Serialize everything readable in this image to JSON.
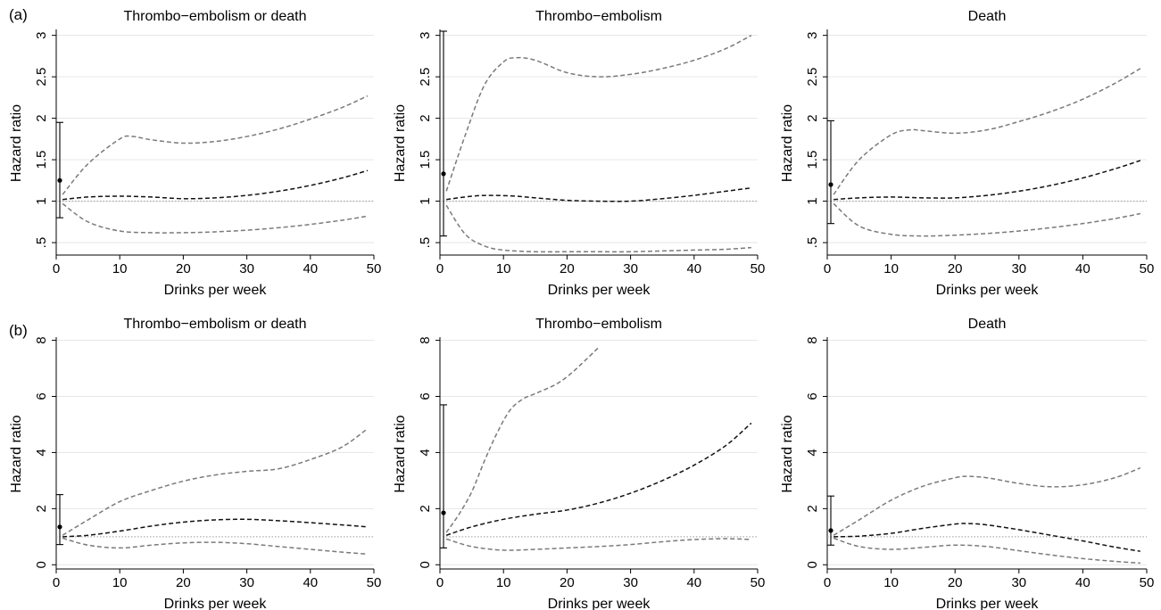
{
  "panel_labels": [
    "(a)",
    "(b)"
  ],
  "chart_data": [
    {
      "type": "line",
      "row": 0,
      "col": 0,
      "title": "Thrombo−embolism or death",
      "xlabel": "Drinks per week",
      "ylabel": "Hazard ratio",
      "xlim": [
        0,
        50
      ],
      "ylim": [
        0.35,
        3.05
      ],
      "xticks": [
        0,
        10,
        20,
        30,
        40,
        50
      ],
      "yticks": [
        0.5,
        1,
        1.5,
        2,
        2.5,
        3
      ],
      "ytick_labels": [
        ".5",
        "1",
        "1.5",
        "2",
        "2.5",
        "3"
      ],
      "grid": true,
      "reference_line": 1,
      "point_estimate": {
        "x": 0,
        "y": 1.25,
        "lower": 0.8,
        "upper": 1.95
      },
      "series": [
        {
          "role": "estimate",
          "x": [
            1,
            5,
            10,
            15,
            20,
            25,
            30,
            35,
            40,
            45,
            49
          ],
          "y": [
            1.02,
            1.05,
            1.06,
            1.05,
            1.03,
            1.04,
            1.07,
            1.12,
            1.19,
            1.28,
            1.37
          ]
        },
        {
          "role": "upper",
          "x": [
            1,
            5,
            10,
            12,
            15,
            20,
            25,
            30,
            35,
            40,
            45,
            49
          ],
          "y": [
            1.08,
            1.45,
            1.75,
            1.78,
            1.74,
            1.7,
            1.72,
            1.78,
            1.87,
            1.99,
            2.13,
            2.27
          ]
        },
        {
          "role": "lower",
          "x": [
            1,
            5,
            10,
            15,
            20,
            25,
            30,
            35,
            40,
            45,
            49
          ],
          "y": [
            0.97,
            0.75,
            0.64,
            0.62,
            0.62,
            0.63,
            0.65,
            0.68,
            0.72,
            0.77,
            0.82
          ]
        }
      ]
    },
    {
      "type": "line",
      "row": 0,
      "col": 1,
      "title": "Thrombo−embolism",
      "xlabel": "Drinks per week",
      "ylabel": "Hazard ratio",
      "xlim": [
        0,
        50
      ],
      "ylim": [
        0.35,
        3.05
      ],
      "xticks": [
        0,
        10,
        20,
        30,
        40,
        50
      ],
      "yticks": [
        0.5,
        1,
        1.5,
        2,
        2.5,
        3
      ],
      "ytick_labels": [
        ".5",
        "1",
        "1.5",
        "2",
        "2.5",
        "3"
      ],
      "grid": true,
      "reference_line": 1,
      "point_estimate": {
        "x": 0,
        "y": 1.33,
        "lower": 0.58,
        "upper": 3.05
      },
      "series": [
        {
          "role": "estimate",
          "x": [
            1,
            5,
            8,
            12,
            15,
            20,
            25,
            30,
            35,
            40,
            45,
            49
          ],
          "y": [
            1.02,
            1.06,
            1.07,
            1.06,
            1.04,
            1.01,
            1.0,
            1.0,
            1.03,
            1.07,
            1.12,
            1.16
          ]
        },
        {
          "role": "upper",
          "x": [
            1,
            4,
            7,
            10,
            12,
            15,
            20,
            25,
            30,
            35,
            40,
            45,
            49
          ],
          "y": [
            1.12,
            1.8,
            2.4,
            2.68,
            2.73,
            2.7,
            2.55,
            2.5,
            2.53,
            2.6,
            2.7,
            2.84,
            3.0
          ]
        },
        {
          "role": "lower",
          "x": [
            1,
            4,
            7,
            10,
            15,
            20,
            25,
            30,
            35,
            40,
            45,
            49
          ],
          "y": [
            0.95,
            0.6,
            0.46,
            0.41,
            0.39,
            0.39,
            0.39,
            0.39,
            0.4,
            0.41,
            0.42,
            0.44
          ]
        }
      ]
    },
    {
      "type": "line",
      "row": 0,
      "col": 2,
      "title": "Death",
      "xlabel": "Drinks per week",
      "ylabel": "Hazard ratio",
      "xlim": [
        0,
        50
      ],
      "ylim": [
        0.35,
        3.05
      ],
      "xticks": [
        0,
        10,
        20,
        30,
        40,
        50
      ],
      "yticks": [
        0.5,
        1,
        1.5,
        2,
        2.5,
        3
      ],
      "ytick_labels": [
        ".5",
        "1",
        "1.5",
        "2",
        "2.5",
        "3"
      ],
      "grid": true,
      "reference_line": 1,
      "point_estimate": {
        "x": 0,
        "y": 1.2,
        "lower": 0.73,
        "upper": 1.97
      },
      "series": [
        {
          "role": "estimate",
          "x": [
            1,
            5,
            10,
            15,
            20,
            25,
            30,
            35,
            40,
            45,
            49
          ],
          "y": [
            1.02,
            1.04,
            1.05,
            1.04,
            1.04,
            1.07,
            1.12,
            1.19,
            1.28,
            1.39,
            1.49
          ]
        },
        {
          "role": "upper",
          "x": [
            1,
            5,
            10,
            13,
            15,
            20,
            25,
            30,
            35,
            40,
            45,
            49
          ],
          "y": [
            1.08,
            1.5,
            1.8,
            1.86,
            1.85,
            1.82,
            1.86,
            1.96,
            2.08,
            2.23,
            2.42,
            2.6
          ]
        },
        {
          "role": "lower",
          "x": [
            1,
            5,
            10,
            15,
            20,
            25,
            30,
            35,
            40,
            45,
            49
          ],
          "y": [
            0.97,
            0.7,
            0.6,
            0.58,
            0.59,
            0.61,
            0.64,
            0.68,
            0.73,
            0.79,
            0.85
          ]
        }
      ]
    },
    {
      "type": "line",
      "row": 1,
      "col": 0,
      "title": "Thrombo−embolism or death",
      "xlabel": "Drinks per week",
      "ylabel": "Hazard ratio",
      "xlim": [
        0,
        50
      ],
      "ylim": [
        -0.15,
        8.05
      ],
      "xticks": [
        0,
        10,
        20,
        30,
        40,
        50
      ],
      "yticks": [
        0,
        2,
        4,
        6,
        8
      ],
      "ytick_labels": [
        "0",
        "2",
        "4",
        "6",
        "8"
      ],
      "grid": true,
      "reference_line": 1,
      "point_estimate": {
        "x": 0,
        "y": 1.35,
        "lower": 0.72,
        "upper": 2.5
      },
      "series": [
        {
          "role": "estimate",
          "x": [
            1,
            5,
            10,
            15,
            20,
            25,
            30,
            35,
            40,
            45,
            49
          ],
          "y": [
            1.0,
            1.05,
            1.2,
            1.38,
            1.52,
            1.6,
            1.62,
            1.57,
            1.5,
            1.42,
            1.35
          ]
        },
        {
          "role": "upper",
          "x": [
            1,
            5,
            10,
            15,
            20,
            25,
            30,
            35,
            40,
            45,
            49
          ],
          "y": [
            1.05,
            1.6,
            2.25,
            2.65,
            2.98,
            3.2,
            3.33,
            3.42,
            3.75,
            4.2,
            4.85
          ]
        },
        {
          "role": "lower",
          "x": [
            1,
            5,
            10,
            15,
            20,
            25,
            30,
            35,
            40,
            45,
            49
          ],
          "y": [
            0.95,
            0.7,
            0.6,
            0.7,
            0.78,
            0.8,
            0.75,
            0.65,
            0.55,
            0.45,
            0.38
          ]
        }
      ]
    },
    {
      "type": "line",
      "row": 1,
      "col": 1,
      "title": "Thrombo−embolism",
      "xlabel": "Drinks per week",
      "ylabel": "Hazard ratio",
      "xlim": [
        0,
        50
      ],
      "ylim": [
        -0.15,
        8.05
      ],
      "xticks": [
        0,
        10,
        20,
        30,
        40,
        50
      ],
      "yticks": [
        0,
        2,
        4,
        6,
        8
      ],
      "ytick_labels": [
        "0",
        "2",
        "4",
        "6",
        "8"
      ],
      "grid": true,
      "reference_line": 1,
      "point_estimate": {
        "x": 0,
        "y": 1.85,
        "lower": 0.6,
        "upper": 5.7
      },
      "series": [
        {
          "role": "estimate",
          "x": [
            1,
            5,
            10,
            15,
            20,
            25,
            30,
            35,
            40,
            45,
            49
          ],
          "y": [
            1.05,
            1.35,
            1.62,
            1.8,
            1.95,
            2.2,
            2.55,
            3.0,
            3.55,
            4.25,
            5.05
          ]
        },
        {
          "role": "upper",
          "x": [
            1,
            3,
            5,
            7,
            9,
            11,
            13,
            15,
            18,
            20,
            22,
            25
          ],
          "y": [
            1.15,
            1.8,
            2.6,
            3.7,
            4.7,
            5.5,
            5.9,
            6.1,
            6.4,
            6.7,
            7.1,
            7.75
          ]
        },
        {
          "role": "lower",
          "x": [
            1,
            5,
            10,
            15,
            20,
            25,
            30,
            35,
            40,
            45,
            49
          ],
          "y": [
            0.92,
            0.65,
            0.52,
            0.55,
            0.6,
            0.65,
            0.72,
            0.82,
            0.9,
            0.93,
            0.9
          ]
        }
      ]
    },
    {
      "type": "line",
      "row": 1,
      "col": 2,
      "title": "Death",
      "xlabel": "Drinks per week",
      "ylabel": "Hazard ratio",
      "xlim": [
        0,
        50
      ],
      "ylim": [
        -0.15,
        8.05
      ],
      "xticks": [
        0,
        10,
        20,
        30,
        40,
        50
      ],
      "yticks": [
        0,
        2,
        4,
        6,
        8
      ],
      "ytick_labels": [
        "0",
        "2",
        "4",
        "6",
        "8"
      ],
      "grid": true,
      "reference_line": 1,
      "point_estimate": {
        "x": 0,
        "y": 1.22,
        "lower": 0.7,
        "upper": 2.45
      },
      "series": [
        {
          "role": "estimate",
          "x": [
            1,
            5,
            10,
            15,
            20,
            22,
            25,
            30,
            35,
            40,
            45,
            49
          ],
          "y": [
            1.0,
            1.02,
            1.12,
            1.3,
            1.45,
            1.47,
            1.42,
            1.25,
            1.05,
            0.85,
            0.63,
            0.48
          ]
        },
        {
          "role": "upper",
          "x": [
            1,
            5,
            10,
            15,
            20,
            22,
            25,
            30,
            35,
            40,
            45,
            49
          ],
          "y": [
            1.05,
            1.6,
            2.3,
            2.8,
            3.1,
            3.15,
            3.1,
            2.9,
            2.78,
            2.85,
            3.1,
            3.45
          ]
        },
        {
          "role": "lower",
          "x": [
            1,
            5,
            10,
            15,
            20,
            25,
            30,
            35,
            40,
            45,
            49
          ],
          "y": [
            0.95,
            0.65,
            0.55,
            0.62,
            0.7,
            0.65,
            0.5,
            0.35,
            0.22,
            0.12,
            0.06
          ]
        }
      ]
    }
  ]
}
